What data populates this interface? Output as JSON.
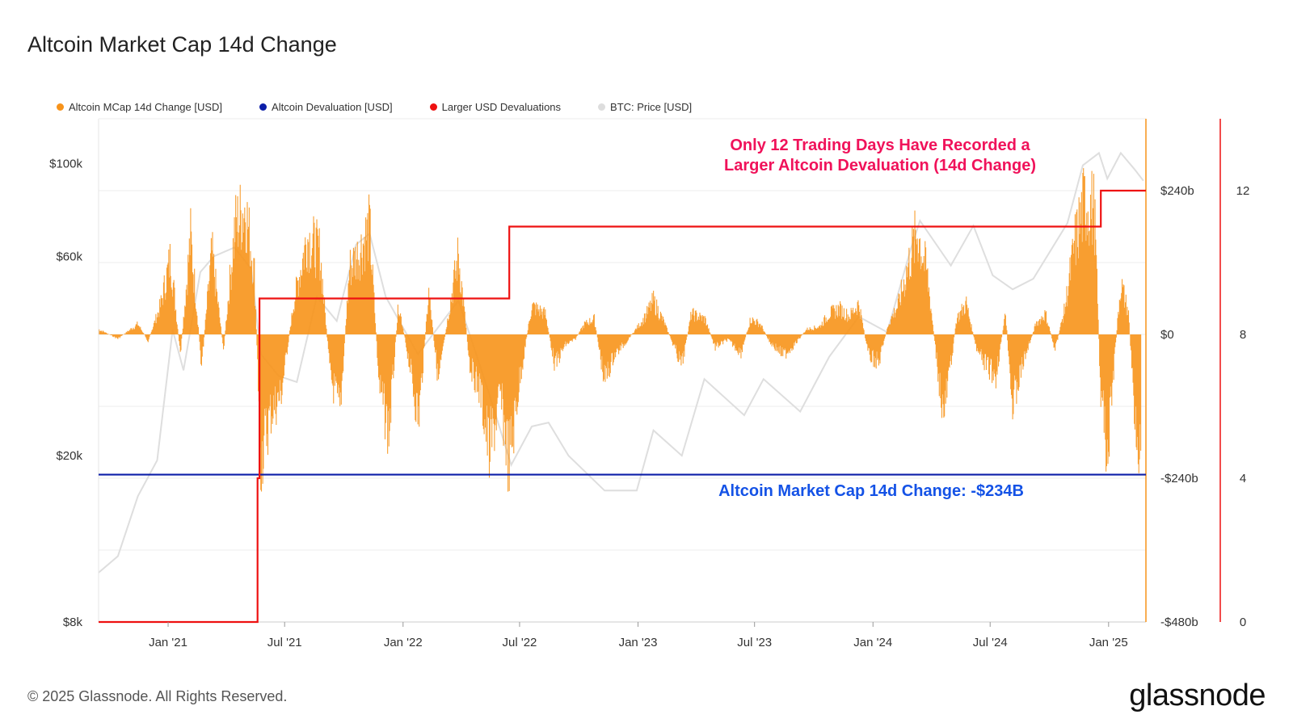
{
  "header": {
    "title": "Altcoin Market Cap 14d Change"
  },
  "footer": {
    "copyright": "© 2025 Glassnode. All Rights Reserved.",
    "brand": "glassnode"
  },
  "colors": {
    "mcap_change": "#f7931a",
    "devaluation": "#0c1ea8",
    "larger_devaluations": "#ee1111",
    "btc_price": "#dddddd",
    "annotation_red": "#f0125a",
    "annotation_blue": "#1452e6"
  },
  "chart_data": {
    "type": "bar",
    "legend": [
      {
        "label": "Altcoin MCap 14d Change [USD]",
        "color": "#f7931a"
      },
      {
        "label": "Altcoin Devaluation [USD]",
        "color": "#0c1ea8"
      },
      {
        "label": "Larger USD Devaluations",
        "color": "#ee1111"
      },
      {
        "label": "BTC: Price [USD]",
        "color": "#dddddd"
      }
    ],
    "legend_position": "top-left",
    "annotations": {
      "top_line1": "Only 12 Trading Days Have Recorded a",
      "top_line2": "Larger Altcoin Devaluation (14d Change)",
      "bottom": "Altcoin Market Cap 14d Change: -$234B"
    },
    "x_ticks": [
      "Jan '21",
      "Jul '21",
      "Jan '22",
      "Jul '22",
      "Jan '23",
      "Jul '23",
      "Jan '24",
      "Jul '24",
      "Jan '25"
    ],
    "x_tick_dates": [
      "2021-01-01",
      "2021-07-01",
      "2022-01-01",
      "2022-07-01",
      "2023-01-01",
      "2023-07-01",
      "2024-01-01",
      "2024-07-01",
      "2025-01-01"
    ],
    "x_range": [
      "2020-09-15",
      "2025-02-28"
    ],
    "y_left_ticks": [
      {
        "label": "$100k",
        "value": 100000
      },
      {
        "label": "$60k",
        "value": 60000
      },
      {
        "label": "$20k",
        "value": 20000
      },
      {
        "label": "$8k",
        "value": 8000
      }
    ],
    "y_left_range": [
      8000,
      128000
    ],
    "y_left_scale": "log",
    "y_right_ticks": [
      {
        "label": "$240b",
        "value": 240
      },
      {
        "label": "$0",
        "value": 0
      },
      {
        "label": "-$240b",
        "value": -240
      },
      {
        "label": "-$480b",
        "value": -480
      }
    ],
    "y_right_range": [
      -480,
      360
    ],
    "y_right_unit": "billion USD",
    "y_count_ticks": [
      {
        "label": "12",
        "value": 12
      },
      {
        "label": "8",
        "value": 8
      },
      {
        "label": "4",
        "value": 4
      },
      {
        "label": "0",
        "value": 0
      }
    ],
    "y_count_range": [
      0,
      14
    ],
    "devaluation_level": -234,
    "series_mcap_change": {
      "name": "Altcoin MCap 14d Change [USD]",
      "points": [
        [
          "2020-09-15",
          10
        ],
        [
          "2020-10-15",
          -8
        ],
        [
          "2020-11-15",
          20
        ],
        [
          "2020-12-01",
          -12
        ],
        [
          "2020-12-20",
          55
        ],
        [
          "2021-01-05",
          150
        ],
        [
          "2021-01-20",
          -40
        ],
        [
          "2021-02-05",
          190
        ],
        [
          "2021-02-22",
          -60
        ],
        [
          "2021-03-10",
          160
        ],
        [
          "2021-03-28",
          -30
        ],
        [
          "2021-04-15",
          210
        ],
        [
          "2021-05-01",
          250
        ],
        [
          "2021-05-15",
          120
        ],
        [
          "2021-05-25",
          -240
        ],
        [
          "2021-06-10",
          -150
        ],
        [
          "2021-06-25",
          -120
        ],
        [
          "2021-07-15",
          60
        ],
        [
          "2021-08-05",
          190
        ],
        [
          "2021-08-25",
          160
        ],
        [
          "2021-09-10",
          -80
        ],
        [
          "2021-09-25",
          -150
        ],
        [
          "2021-10-10",
          130
        ],
        [
          "2021-10-25",
          160
        ],
        [
          "2021-11-10",
          210
        ],
        [
          "2021-11-25",
          -100
        ],
        [
          "2021-12-10",
          -190
        ],
        [
          "2021-12-25",
          60
        ],
        [
          "2022-01-10",
          -50
        ],
        [
          "2022-01-25",
          -165
        ],
        [
          "2022-02-10",
          80
        ],
        [
          "2022-02-25",
          -90
        ],
        [
          "2022-03-10",
          20
        ],
        [
          "2022-03-28",
          155
        ],
        [
          "2022-04-15",
          -60
        ],
        [
          "2022-05-01",
          -110
        ],
        [
          "2022-05-15",
          -230
        ],
        [
          "2022-06-01",
          -120
        ],
        [
          "2022-06-15",
          -250
        ],
        [
          "2022-07-01",
          -90
        ],
        [
          "2022-07-20",
          55
        ],
        [
          "2022-08-10",
          40
        ],
        [
          "2022-08-25",
          -60
        ],
        [
          "2022-09-10",
          -20
        ],
        [
          "2022-09-25",
          -10
        ],
        [
          "2022-10-10",
          20
        ],
        [
          "2022-10-25",
          30
        ],
        [
          "2022-11-10",
          -90
        ],
        [
          "2022-11-25",
          -40
        ],
        [
          "2022-12-10",
          -20
        ],
        [
          "2023-01-10",
          30
        ],
        [
          "2023-01-25",
          65
        ],
        [
          "2023-02-10",
          25
        ],
        [
          "2023-02-25",
          -20
        ],
        [
          "2023-03-10",
          -60
        ],
        [
          "2023-03-25",
          40
        ],
        [
          "2023-04-15",
          30
        ],
        [
          "2023-05-01",
          -25
        ],
        [
          "2023-05-20",
          -10
        ],
        [
          "2023-06-10",
          -35
        ],
        [
          "2023-06-25",
          30
        ],
        [
          "2023-07-10",
          20
        ],
        [
          "2023-07-25",
          -15
        ],
        [
          "2023-08-15",
          -40
        ],
        [
          "2023-09-01",
          -20
        ],
        [
          "2023-09-20",
          10
        ],
        [
          "2023-10-10",
          15
        ],
        [
          "2023-10-25",
          40
        ],
        [
          "2023-11-10",
          50
        ],
        [
          "2023-11-25",
          35
        ],
        [
          "2023-12-10",
          60
        ],
        [
          "2023-12-25",
          -40
        ],
        [
          "2024-01-10",
          -55
        ],
        [
          "2024-01-25",
          20
        ],
        [
          "2024-02-10",
          60
        ],
        [
          "2024-02-28",
          150
        ],
        [
          "2024-03-10",
          200
        ],
        [
          "2024-03-25",
          120
        ],
        [
          "2024-04-10",
          -60
        ],
        [
          "2024-04-20",
          -160
        ],
        [
          "2024-05-10",
          30
        ],
        [
          "2024-05-25",
          60
        ],
        [
          "2024-06-10",
          -30
        ],
        [
          "2024-06-25",
          -60
        ],
        [
          "2024-07-10",
          -80
        ],
        [
          "2024-07-25",
          40
        ],
        [
          "2024-08-05",
          -140
        ],
        [
          "2024-08-20",
          -60
        ],
        [
          "2024-09-10",
          20
        ],
        [
          "2024-09-25",
          40
        ],
        [
          "2024-10-10",
          -30
        ],
        [
          "2024-10-25",
          50
        ],
        [
          "2024-11-10",
          180
        ],
        [
          "2024-11-25",
          260
        ],
        [
          "2024-12-10",
          240
        ],
        [
          "2024-12-20",
          -120
        ],
        [
          "2024-12-31",
          -230
        ],
        [
          "2025-01-10",
          -50
        ],
        [
          "2025-01-20",
          100
        ],
        [
          "2025-02-01",
          40
        ],
        [
          "2025-02-10",
          -140
        ],
        [
          "2025-02-20",
          -234
        ]
      ]
    },
    "series_btc_price": {
      "name": "BTC: Price [USD]",
      "points": [
        [
          "2020-09-15",
          10500
        ],
        [
          "2020-10-15",
          11500
        ],
        [
          "2020-11-15",
          16000
        ],
        [
          "2020-12-15",
          19500
        ],
        [
          "2021-01-08",
          40000
        ],
        [
          "2021-01-25",
          32000
        ],
        [
          "2021-02-20",
          55000
        ],
        [
          "2021-03-13",
          60000
        ],
        [
          "2021-04-14",
          63000
        ],
        [
          "2021-05-10",
          56000
        ],
        [
          "2021-05-25",
          35000
        ],
        [
          "2021-06-22",
          31000
        ],
        [
          "2021-07-20",
          30000
        ],
        [
          "2021-08-20",
          48000
        ],
        [
          "2021-09-20",
          42000
        ],
        [
          "2021-10-20",
          64000
        ],
        [
          "2021-11-10",
          68000
        ],
        [
          "2021-12-05",
          48000
        ],
        [
          "2022-01-24",
          35000
        ],
        [
          "2022-03-28",
          47000
        ],
        [
          "2022-05-12",
          29000
        ],
        [
          "2022-06-18",
          19000
        ],
        [
          "2022-07-20",
          23500
        ],
        [
          "2022-08-15",
          24000
        ],
        [
          "2022-09-15",
          20000
        ],
        [
          "2022-11-10",
          16500
        ],
        [
          "2022-12-30",
          16500
        ],
        [
          "2023-01-25",
          23000
        ],
        [
          "2023-03-10",
          20000
        ],
        [
          "2023-04-14",
          30500
        ],
        [
          "2023-06-15",
          25000
        ],
        [
          "2023-07-15",
          30500
        ],
        [
          "2023-09-10",
          25500
        ],
        [
          "2023-10-25",
          34500
        ],
        [
          "2023-12-10",
          43000
        ],
        [
          "2024-01-23",
          39500
        ],
        [
          "2024-02-28",
          62000
        ],
        [
          "2024-03-14",
          73000
        ],
        [
          "2024-05-01",
          57000
        ],
        [
          "2024-06-05",
          71000
        ],
        [
          "2024-07-05",
          54000
        ],
        [
          "2024-08-05",
          50000
        ],
        [
          "2024-09-06",
          53000
        ],
        [
          "2024-10-29",
          72000
        ],
        [
          "2024-11-22",
          99000
        ],
        [
          "2024-12-17",
          106000
        ],
        [
          "2024-12-30",
          92000
        ],
        [
          "2025-01-20",
          106000
        ],
        [
          "2025-02-10",
          97000
        ],
        [
          "2025-02-24",
          91000
        ]
      ]
    },
    "series_larger_devaluations": {
      "name": "Larger USD Devaluations",
      "steps": [
        [
          "2020-09-15",
          0
        ],
        [
          "2021-05-19",
          0
        ],
        [
          "2021-05-20",
          4
        ],
        [
          "2021-05-23",
          9
        ],
        [
          "2022-06-13",
          9
        ],
        [
          "2022-06-15",
          11
        ],
        [
          "2024-12-19",
          11
        ],
        [
          "2024-12-20",
          12
        ],
        [
          "2025-02-28",
          12
        ]
      ]
    }
  }
}
